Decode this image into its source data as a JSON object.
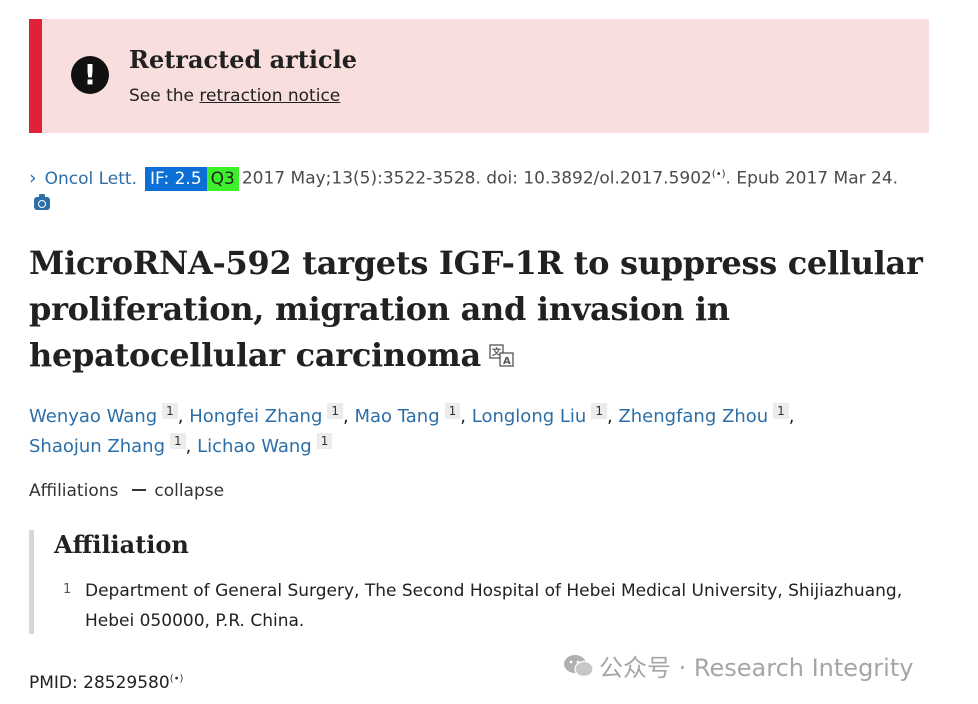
{
  "notice": {
    "title": "Retracted article",
    "see_prefix": "See the",
    "link_text": "retraction notice",
    "alert_glyph": "!"
  },
  "citation": {
    "journal": "Oncol Lett.",
    "impact_factor": "IF: 2.5",
    "quartile": "Q3",
    "details": "2017 May;13(5):3522-3528. doi: 10.3892/ol.2017.5902",
    "epub": ". Epub 2017 Mar 24.",
    "radio_glyph": "(•)"
  },
  "article": {
    "title": "MicroRNA-592 targets IGF-1R to suppress cellular proliferation, migration and invasion in hepatocellular carcinoma"
  },
  "authors": [
    {
      "name": "Wenyao Wang",
      "aff": "1"
    },
    {
      "name": "Hongfei Zhang",
      "aff": "1"
    },
    {
      "name": "Mao Tang",
      "aff": "1"
    },
    {
      "name": "Longlong Liu",
      "aff": "1"
    },
    {
      "name": "Zhengfang Zhou",
      "aff": "1"
    },
    {
      "name": "Shaojun Zhang",
      "aff": "1"
    },
    {
      "name": "Lichao Wang",
      "aff": "1"
    }
  ],
  "affiliations": {
    "label": "Affiliations",
    "collapse": "collapse",
    "heading": "Affiliation",
    "items": [
      {
        "num": "1",
        "text": "Department of General Surgery, The Second Hospital of Hebei Medical University, Shijiazhuang, Hebei 050000, P.R. China."
      }
    ]
  },
  "pmid": {
    "text": "PMID: 28529580",
    "radio_glyph": "(•)"
  },
  "watermark": {
    "text": "公众号 · Research Integrity"
  },
  "icons": {
    "alert": "exclamation-circle-icon",
    "chevron": "chevron-right-icon",
    "camera": "camera-icon",
    "translate": "translate-icon",
    "wechat": "wechat-icon"
  },
  "colors": {
    "notice_bg": "#f9dede",
    "notice_bar": "#e0213a",
    "link": "#2c6ea8",
    "if_badge": "#0b6fd6",
    "q_badge": "#3cf02a"
  }
}
